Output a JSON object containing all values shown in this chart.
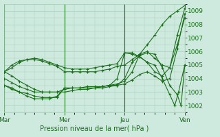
{
  "title": "Pression niveau de la mer( hPa )",
  "background_color": "#ceeade",
  "grid_color": "#a8cdb8",
  "line_color": "#1a6e1a",
  "xlim": [
    0,
    72
  ],
  "ylim": [
    1001.5,
    1009.5
  ],
  "yticks": [
    1002,
    1003,
    1004,
    1005,
    1006,
    1007,
    1008,
    1009
  ],
  "xtick_positions": [
    0,
    24,
    48,
    72
  ],
  "xtick_labels": [
    "Mar",
    "Mer",
    "Jeu",
    "Ven"
  ],
  "vlines": [
    0,
    24,
    48,
    72
  ],
  "series": [
    [
      0,
      1004.5,
      3,
      1004.2,
      6,
      1003.8,
      9,
      1003.5,
      12,
      1003.2,
      15,
      1003.0,
      18,
      1003.0,
      21,
      1003.0,
      24,
      1003.2,
      27,
      1003.3,
      30,
      1003.3,
      33,
      1003.4,
      36,
      1003.4,
      39,
      1003.4,
      42,
      1003.5,
      45,
      1003.6,
      48,
      1003.8,
      51,
      1004.5,
      54,
      1005.8,
      57,
      1006.5,
      60,
      1007.2,
      63,
      1008.0,
      66,
      1008.6,
      69,
      1009.0,
      72,
      1009.4
    ],
    [
      0,
      1004.0,
      3,
      1003.7,
      6,
      1003.4,
      9,
      1003.2,
      12,
      1003.0,
      15,
      1003.0,
      18,
      1003.0,
      21,
      1003.0,
      24,
      1003.0,
      27,
      1003.1,
      30,
      1003.2,
      33,
      1003.2,
      36,
      1003.3,
      39,
      1003.3,
      42,
      1003.4,
      45,
      1003.5,
      48,
      1004.0,
      51,
      1005.2,
      54,
      1005.7,
      57,
      1005.9,
      60,
      1005.8,
      63,
      1004.8,
      66,
      1003.5,
      69,
      1002.8,
      70.5,
      1002.0,
      72,
      1005.0
    ],
    [
      0,
      1004.5,
      3,
      1004.8,
      6,
      1005.2,
      9,
      1005.4,
      12,
      1005.5,
      15,
      1005.4,
      18,
      1005.2,
      21,
      1005.0,
      24,
      1004.8,
      27,
      1004.7,
      30,
      1004.7,
      33,
      1004.7,
      36,
      1004.8,
      39,
      1004.9,
      42,
      1005.0,
      45,
      1005.1,
      48,
      1005.9,
      51,
      1005.8,
      54,
      1005.6,
      57,
      1005.2,
      60,
      1005.0,
      63,
      1004.0,
      66,
      1002.8,
      68,
      1002.0,
      69.5,
      1003.0,
      72,
      1005.0
    ],
    [
      0,
      1003.5,
      3,
      1003.3,
      6,
      1003.0,
      9,
      1002.9,
      12,
      1002.7,
      15,
      1002.6,
      18,
      1002.6,
      21,
      1002.6,
      24,
      1003.3,
      27,
      1003.3,
      30,
      1003.3,
      33,
      1003.3,
      36,
      1003.3,
      39,
      1003.4,
      42,
      1003.5,
      45,
      1004.0,
      48,
      1005.9,
      51,
      1005.9,
      54,
      1005.6,
      57,
      1005.2,
      60,
      1004.5,
      63,
      1004.2,
      66,
      1004.8,
      69,
      1006.5,
      72,
      1008.5
    ],
    [
      0,
      1003.5,
      3,
      1003.2,
      6,
      1003.0,
      9,
      1002.7,
      12,
      1002.5,
      15,
      1002.5,
      18,
      1002.5,
      21,
      1002.7,
      24,
      1003.3,
      27,
      1003.3,
      30,
      1003.3,
      33,
      1003.3,
      36,
      1003.3,
      39,
      1003.4,
      42,
      1003.5,
      45,
      1003.5,
      48,
      1003.6,
      51,
      1003.9,
      54,
      1004.3,
      57,
      1004.5,
      60,
      1004.2,
      63,
      1003.8,
      66,
      1004.0,
      69,
      1006.2,
      72,
      1008.8
    ],
    [
      0,
      1004.5,
      3,
      1005.0,
      6,
      1005.3,
      9,
      1005.4,
      12,
      1005.4,
      15,
      1005.3,
      18,
      1005.1,
      21,
      1004.9,
      24,
      1004.5,
      27,
      1004.5,
      30,
      1004.5,
      33,
      1004.5,
      36,
      1004.5,
      39,
      1004.6,
      42,
      1004.7,
      45,
      1004.9,
      48,
      1005.0,
      51,
      1005.4,
      54,
      1005.8,
      57,
      1006.0,
      60,
      1005.5,
      63,
      1005.0,
      66,
      1004.8,
      69,
      1007.2,
      72,
      1009.2
    ]
  ]
}
